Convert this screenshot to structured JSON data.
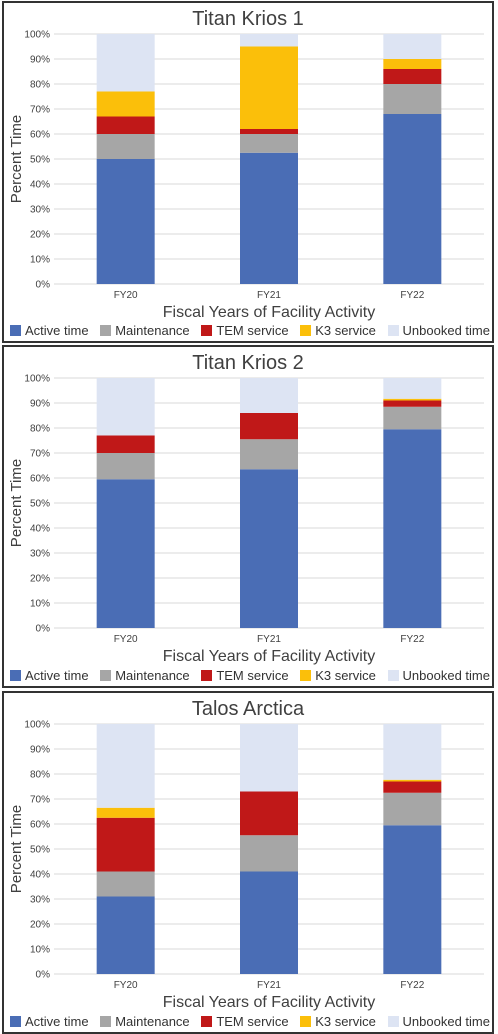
{
  "colors": {
    "active": "#4a6db5",
    "maintenance": "#a6a6a6",
    "tem": "#c01818",
    "k3": "#fbbf0a",
    "unbooked": "#dde4f3",
    "grid": "#d9d9d9",
    "text": "#404040"
  },
  "chart_data": [
    {
      "type": "bar",
      "stacked": true,
      "title": "Titan Krios 1",
      "xlabel": "Fiscal Years of Facility Activity",
      "ylabel": "Percent Time",
      "categories": [
        "FY20",
        "FY21",
        "FY22"
      ],
      "ylim": [
        0,
        100
      ],
      "yticks": [
        "0%",
        "10%",
        "20%",
        "30%",
        "40%",
        "50%",
        "60%",
        "70%",
        "80%",
        "90%",
        "100%"
      ],
      "legend_position": "bottom",
      "series": [
        {
          "name": "Active time",
          "color_key": "active",
          "values": [
            50,
            52.5,
            68
          ]
        },
        {
          "name": "Maintenance",
          "color_key": "maintenance",
          "values": [
            10,
            7.5,
            12
          ]
        },
        {
          "name": "TEM service",
          "color_key": "tem",
          "values": [
            7,
            2,
            6
          ]
        },
        {
          "name": "K3 service",
          "color_key": "k3",
          "values": [
            10,
            33,
            4
          ]
        },
        {
          "name": "Unbooked time",
          "color_key": "unbooked",
          "values": [
            23,
            5,
            10
          ]
        }
      ]
    },
    {
      "type": "bar",
      "stacked": true,
      "title": "Titan Krios 2",
      "xlabel": "Fiscal Years of Facility Activity",
      "ylabel": "Percent Time",
      "categories": [
        "FY20",
        "FY21",
        "FY22"
      ],
      "ylim": [
        0,
        100
      ],
      "yticks": [
        "0%",
        "10%",
        "20%",
        "30%",
        "40%",
        "50%",
        "60%",
        "70%",
        "80%",
        "90%",
        "100%"
      ],
      "legend_position": "bottom",
      "series": [
        {
          "name": "Active time",
          "color_key": "active",
          "values": [
            59.5,
            63.5,
            79.5
          ]
        },
        {
          "name": "Maintenance",
          "color_key": "maintenance",
          "values": [
            10.5,
            12,
            9
          ]
        },
        {
          "name": "TEM service",
          "color_key": "tem",
          "values": [
            7,
            10.5,
            2.5
          ]
        },
        {
          "name": "K3 service",
          "color_key": "k3",
          "values": [
            0,
            0,
            0.7
          ]
        },
        {
          "name": "Unbooked time",
          "color_key": "unbooked",
          "values": [
            23,
            14,
            8.3
          ]
        }
      ]
    },
    {
      "type": "bar",
      "stacked": true,
      "title": "Talos Arctica",
      "xlabel": "Fiscal Years of Facility Activity",
      "ylabel": "Percent Time",
      "categories": [
        "FY20",
        "FY21",
        "FY22"
      ],
      "ylim": [
        0,
        100
      ],
      "yticks": [
        "0%",
        "10%",
        "20%",
        "30%",
        "40%",
        "50%",
        "60%",
        "70%",
        "80%",
        "90%",
        "100%"
      ],
      "legend_position": "bottom",
      "series": [
        {
          "name": "Active time",
          "color_key": "active",
          "values": [
            31,
            41,
            59.5
          ]
        },
        {
          "name": "Maintenance",
          "color_key": "maintenance",
          "values": [
            10,
            14.5,
            13
          ]
        },
        {
          "name": "TEM service",
          "color_key": "tem",
          "values": [
            21.5,
            17.5,
            4.5
          ]
        },
        {
          "name": "K3 service",
          "color_key": "k3",
          "values": [
            4,
            0,
            0.7
          ]
        },
        {
          "name": "Unbooked time",
          "color_key": "unbooked",
          "values": [
            33.5,
            27,
            22.3
          ]
        }
      ]
    }
  ]
}
